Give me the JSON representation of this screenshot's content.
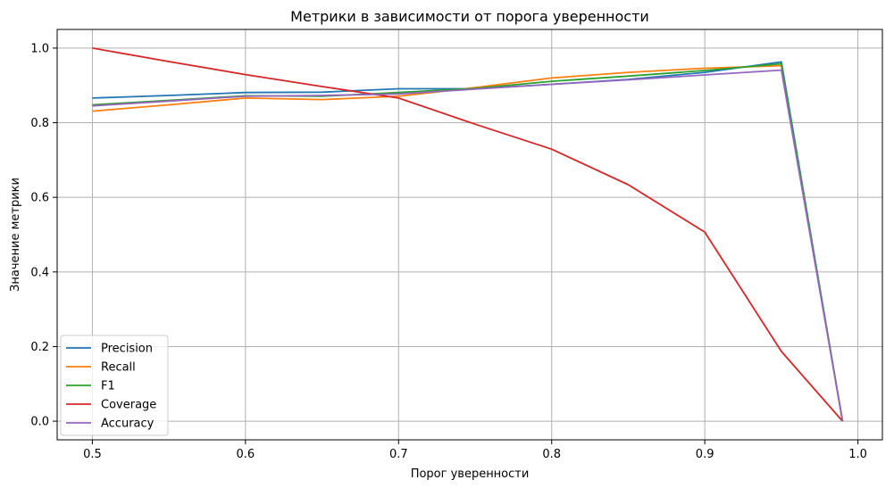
{
  "chart_data": {
    "type": "line",
    "title": "Метрики в зависимости от порога уверенности",
    "xlabel": "Порог уверенности",
    "ylabel": "Значение метрики",
    "xlim": [
      0.477,
      1.016
    ],
    "ylim": [
      -0.05,
      1.05
    ],
    "xticks": [
      0.5,
      0.6,
      0.7,
      0.8,
      0.9,
      1.0
    ],
    "xtick_labels": [
      "0.5",
      "0.6",
      "0.7",
      "0.8",
      "0.9",
      "1.0"
    ],
    "yticks": [
      0.0,
      0.2,
      0.4,
      0.6,
      0.8,
      1.0
    ],
    "ytick_labels": [
      "0.0",
      "0.2",
      "0.4",
      "0.6",
      "0.8",
      "1.0"
    ],
    "grid": true,
    "legend_position": "lower-left",
    "x": [
      0.5,
      0.55,
      0.6,
      0.65,
      0.7,
      0.75,
      0.8,
      0.85,
      0.9,
      0.95,
      0.99
    ],
    "series": [
      {
        "name": "Precision",
        "color": "#1f77b4",
        "values": [
          0.866,
          0.873,
          0.881,
          0.882,
          0.891,
          0.891,
          0.903,
          0.916,
          0.935,
          0.963,
          0.0
        ]
      },
      {
        "name": "Recall",
        "color": "#ff7f0e",
        "values": [
          0.831,
          0.848,
          0.866,
          0.862,
          0.871,
          0.894,
          0.92,
          0.935,
          0.946,
          0.953,
          0.0
        ]
      },
      {
        "name": "F1",
        "color": "#2ca02c",
        "values": [
          0.848,
          0.86,
          0.872,
          0.871,
          0.881,
          0.892,
          0.911,
          0.925,
          0.94,
          0.958,
          0.0
        ]
      },
      {
        "name": "Coverage",
        "color": "#d62728",
        "values": [
          1.0,
          0.964,
          0.929,
          0.897,
          0.866,
          0.796,
          0.729,
          0.634,
          0.507,
          0.187,
          0.0
        ]
      },
      {
        "name": "Accuracy",
        "color": "#9467bd",
        "values": [
          0.845,
          0.858,
          0.871,
          0.873,
          0.877,
          0.89,
          0.903,
          0.915,
          0.928,
          0.941,
          0.0
        ]
      }
    ]
  }
}
